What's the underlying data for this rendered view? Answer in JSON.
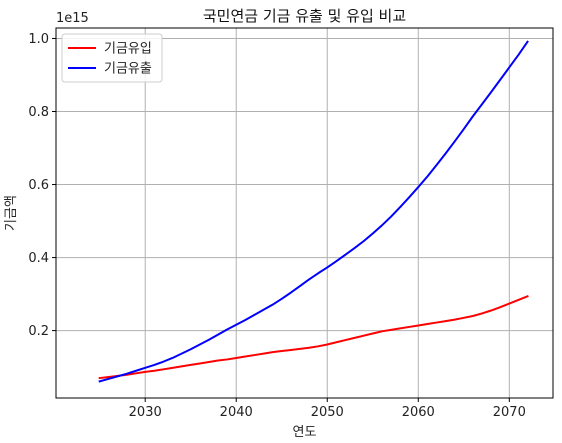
{
  "chart_data": {
    "type": "line",
    "title": "국민연금 기금 유출 및 유입 비교",
    "xlabel": "연도",
    "ylabel": "기금액",
    "y_offset_label": "1e15",
    "xlim": [
      2020.2,
      2074.8
    ],
    "ylim": [
      0.0154,
      1.0287
    ],
    "x_ticks": [
      2030,
      2040,
      2050,
      2060,
      2070
    ],
    "y_ticks": [
      0.2,
      0.4,
      0.6,
      0.8,
      1.0
    ],
    "x_tick_labels": [
      "2030",
      "2040",
      "2050",
      "2060",
      "2070"
    ],
    "y_tick_labels": [
      "0.2",
      "0.4",
      "0.6",
      "0.8",
      "1.0"
    ],
    "grid": true,
    "legend_position": "top-left",
    "series": [
      {
        "name": "기금유입",
        "color": "#ff0000",
        "x": [
          2025,
          2026,
          2027,
          2028,
          2029,
          2030,
          2031,
          2032,
          2033,
          2034,
          2035,
          2036,
          2037,
          2038,
          2039,
          2040,
          2041,
          2042,
          2043,
          2044,
          2045,
          2046,
          2047,
          2048,
          2049,
          2050,
          2051,
          2052,
          2053,
          2054,
          2055,
          2056,
          2057,
          2058,
          2059,
          2060,
          2061,
          2062,
          2063,
          2064,
          2065,
          2066,
          2067,
          2068,
          2069,
          2070,
          2071,
          2072
        ],
        "y": [
          0.07,
          0.073,
          0.076,
          0.079,
          0.083,
          0.087,
          0.09,
          0.094,
          0.098,
          0.102,
          0.106,
          0.11,
          0.114,
          0.118,
          0.121,
          0.125,
          0.129,
          0.133,
          0.137,
          0.141,
          0.144,
          0.147,
          0.15,
          0.153,
          0.157,
          0.162,
          0.168,
          0.174,
          0.18,
          0.186,
          0.192,
          0.198,
          0.202,
          0.206,
          0.21,
          0.214,
          0.218,
          0.222,
          0.226,
          0.23,
          0.235,
          0.24,
          0.247,
          0.255,
          0.264,
          0.274,
          0.284,
          0.294
        ]
      },
      {
        "name": "기금유출",
        "color": "#0000ff",
        "x": [
          2025,
          2026,
          2027,
          2028,
          2029,
          2030,
          2031,
          2032,
          2033,
          2034,
          2035,
          2036,
          2037,
          2038,
          2039,
          2040,
          2041,
          2042,
          2043,
          2044,
          2045,
          2046,
          2047,
          2048,
          2049,
          2050,
          2051,
          2052,
          2053,
          2054,
          2055,
          2056,
          2057,
          2058,
          2059,
          2060,
          2061,
          2062,
          2063,
          2064,
          2065,
          2066,
          2067,
          2068,
          2069,
          2070,
          2071,
          2072
        ],
        "y": [
          0.061,
          0.068,
          0.075,
          0.082,
          0.09,
          0.098,
          0.106,
          0.115,
          0.125,
          0.137,
          0.149,
          0.162,
          0.175,
          0.189,
          0.203,
          0.216,
          0.229,
          0.243,
          0.257,
          0.271,
          0.287,
          0.304,
          0.322,
          0.34,
          0.357,
          0.373,
          0.39,
          0.408,
          0.426,
          0.445,
          0.466,
          0.488,
          0.512,
          0.538,
          0.565,
          0.593,
          0.622,
          0.653,
          0.685,
          0.718,
          0.752,
          0.787,
          0.82,
          0.853,
          0.887,
          0.921,
          0.955,
          0.991
        ]
      }
    ]
  }
}
